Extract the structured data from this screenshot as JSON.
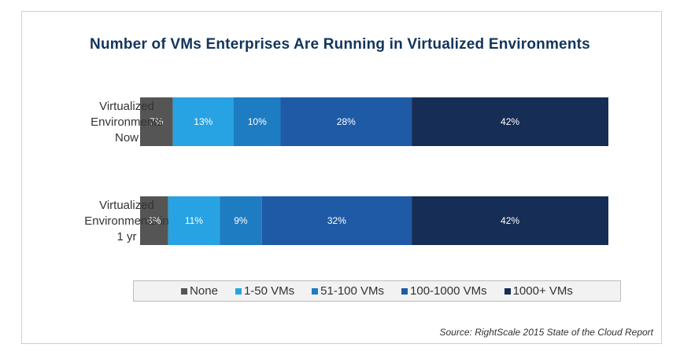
{
  "chart_data": {
    "type": "bar",
    "orientation": "horizontal",
    "stacked": true,
    "title": "Number of VMs Enterprises Are Running in Virtualized Environments",
    "categories": [
      "Virtualized Environments Now",
      "Virtualized Environments in 1 yr"
    ],
    "series": [
      {
        "name": "None",
        "color": "#555555",
        "values": [
          7,
          6
        ],
        "labels": [
          "7%",
          "6%"
        ]
      },
      {
        "name": "1-50 VMs",
        "color": "#27a3e3",
        "values": [
          13,
          11
        ],
        "labels": [
          "13%",
          "11%"
        ]
      },
      {
        "name": "51-100 VMs",
        "color": "#1e7cc2",
        "values": [
          10,
          9
        ],
        "labels": [
          "10%",
          "9%"
        ]
      },
      {
        "name": "100-1000 VMs",
        "color": "#1f5aa6",
        "values": [
          28,
          32
        ],
        "labels": [
          "28%",
          "32%"
        ]
      },
      {
        "name": "1000+ VMs",
        "color": "#162d55",
        "values": [
          42,
          42
        ],
        "labels": [
          "42%",
          "42%"
        ]
      }
    ],
    "xlim": [
      0,
      100
    ],
    "legend_position": "bottom",
    "grid": false
  },
  "category_lines": [
    [
      "Virtualized",
      "Environments",
      "Now"
    ],
    [
      "Virtualized",
      "Environments in",
      "1 yr"
    ]
  ],
  "source": "Source: RightScale 2015 State of the Cloud Report"
}
